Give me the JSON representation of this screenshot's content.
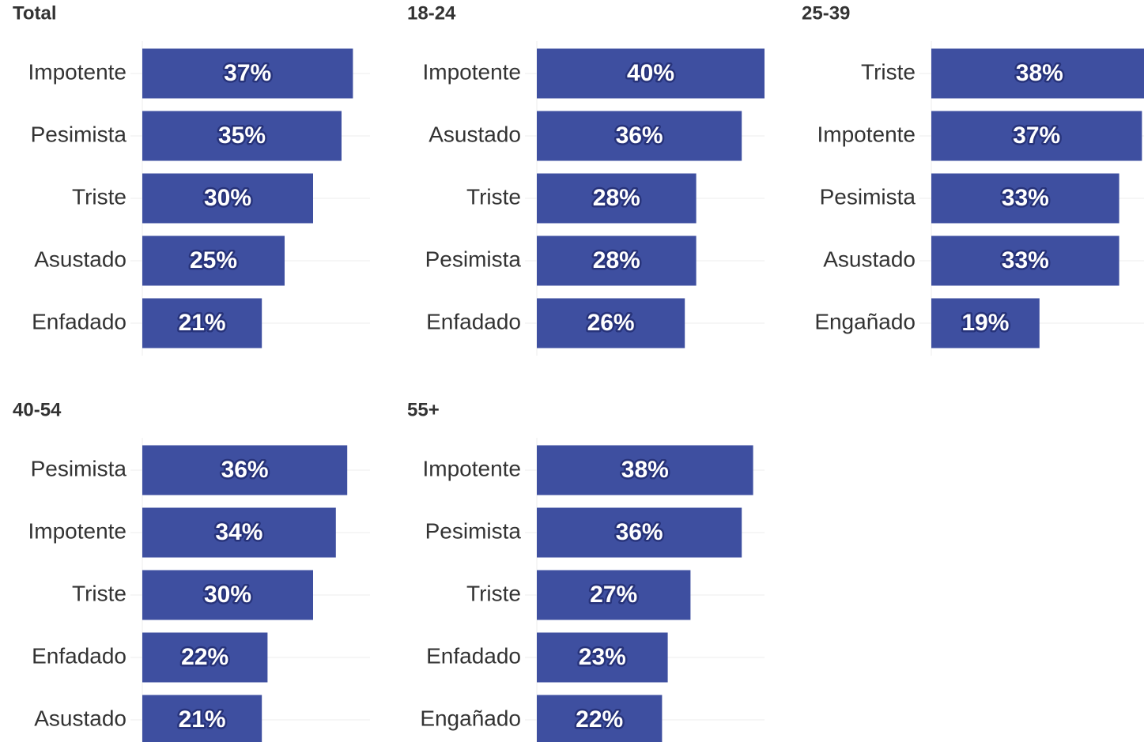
{
  "chart_data": [
    {
      "type": "bar",
      "title": "Total",
      "categories": [
        "Impotente",
        "Pesimista",
        "Triste",
        "Asustado",
        "Enfadado"
      ],
      "values": [
        37,
        35,
        30,
        25,
        21
      ],
      "value_labels": [
        "37%",
        "35%",
        "30%",
        "25%",
        "21%"
      ],
      "color": "#3e4fa0",
      "xlim": [
        0,
        40
      ]
    },
    {
      "type": "bar",
      "title": "18-24",
      "categories": [
        "Impotente",
        "Asustado",
        "Triste",
        "Pesimista",
        "Enfadado"
      ],
      "values": [
        40,
        36,
        28,
        28,
        26
      ],
      "value_labels": [
        "40%",
        "36%",
        "28%",
        "28%",
        "26%"
      ],
      "color": "#3e4fa0",
      "xlim": [
        0,
        40
      ]
    },
    {
      "type": "bar",
      "title": "25-39",
      "categories": [
        "Triste",
        "Impotente",
        "Pesimista",
        "Asustado",
        "Engañado"
      ],
      "values": [
        38,
        37,
        33,
        33,
        19
      ],
      "value_labels": [
        "38%",
        "37%",
        "33%",
        "33%",
        "19%"
      ],
      "color": "#3e4fa0",
      "xlim": [
        0,
        40
      ]
    },
    {
      "type": "bar",
      "title": "40-54",
      "categories": [
        "Pesimista",
        "Impotente",
        "Triste",
        "Enfadado",
        "Asustado"
      ],
      "values": [
        36,
        34,
        30,
        22,
        21
      ],
      "value_labels": [
        "36%",
        "34%",
        "30%",
        "22%",
        "21%"
      ],
      "color": "#3e4fa0",
      "xlim": [
        0,
        40
      ]
    },
    {
      "type": "bar",
      "title": "55+",
      "categories": [
        "Impotente",
        "Pesimista",
        "Triste",
        "Enfadado",
        "Engañado"
      ],
      "values": [
        38,
        36,
        27,
        23,
        22
      ],
      "value_labels": [
        "38%",
        "36%",
        "27%",
        "23%",
        "22%"
      ],
      "color": "#3e4fa0",
      "xlim": [
        0,
        40
      ]
    }
  ]
}
